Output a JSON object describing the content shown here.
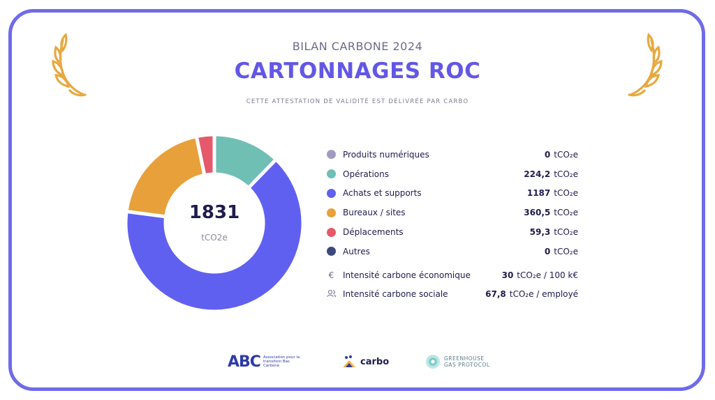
{
  "header": {
    "subtitle": "BILAN CARBONE 2024",
    "title": "CARTONNAGES ROC",
    "attestation": "CETTE ATTESTATION DE VALIDITÉ EST DÉLIVRÉE PAR CARBO"
  },
  "chart_data": {
    "type": "pie",
    "variant": "donut",
    "total": "1831",
    "total_unit": "tCO2e",
    "series": [
      {
        "name": "Produits numériques",
        "value": 0,
        "display": "0",
        "unit": "tCO₂e",
        "color": "#a09cbf"
      },
      {
        "name": "Opérations",
        "value": 224.2,
        "display": "224,2",
        "unit": "tCO₂e",
        "color": "#6fbfb5"
      },
      {
        "name": "Achats et supports",
        "value": 1187,
        "display": "1187",
        "unit": "tCO₂e",
        "color": "#6060f0"
      },
      {
        "name": "Bureaux / sites",
        "value": 360.5,
        "display": "360,5",
        "unit": "tCO₂e",
        "color": "#e8a03a"
      },
      {
        "name": "Déplacements",
        "value": 59.3,
        "display": "59,3",
        "unit": "tCO₂e",
        "color": "#e45a6a"
      },
      {
        "name": "Autres",
        "value": 0,
        "display": "0",
        "unit": "tCO₂e",
        "color": "#3b4a7a"
      }
    ]
  },
  "intensities": [
    {
      "icon": "euro-icon",
      "label": "Intensité carbone économique",
      "value": "30",
      "unit": "tCO₂e / 100 k€"
    },
    {
      "icon": "users-icon",
      "label": "Intensité carbone sociale",
      "value": "67,8",
      "unit": "tCO₂e / employé"
    }
  ],
  "footer": {
    "abc_mark": "ABC",
    "abc_text": "Association pour la transition Bas Carbone",
    "carbo_text": "carbo",
    "ghg_line1": "GREENHOUSE",
    "ghg_line2": "GAS PROTOCOL"
  },
  "colors": {
    "accent": "#6357e6",
    "frame": "#6f6be8",
    "laurel": "#e8a83e"
  }
}
